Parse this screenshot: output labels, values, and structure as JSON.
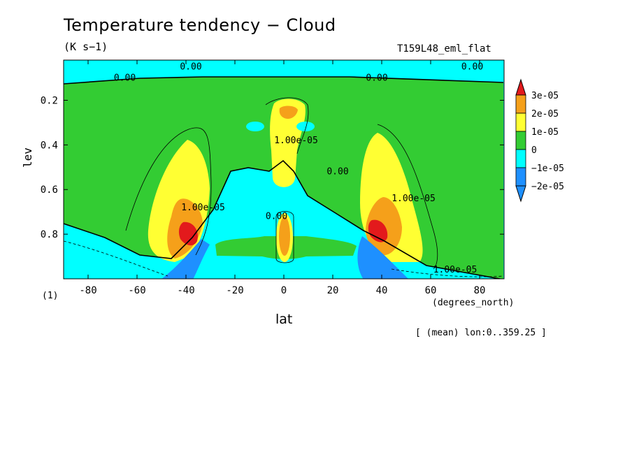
{
  "chart_data": {
    "type": "heatmap",
    "title": "Temperature tendency − Cloud",
    "units": "(K s−1)",
    "run_label": "T159L48_eml_flat",
    "xlabel": "lat",
    "x_units": "(degrees_north)",
    "ylabel": "lev",
    "corner_note": "(1)",
    "footnote": "[ (mean) lon:0..359.25 ]",
    "xlim": [
      -90,
      90
    ],
    "ylim": [
      1.0,
      0.02
    ],
    "x_ticks": [
      -80,
      -60,
      -40,
      -20,
      0,
      20,
      40,
      60,
      80
    ],
    "y_ticks": [
      0.2,
      0.4,
      0.6,
      0.8
    ],
    "y_inverted": true,
    "colorbar": {
      "levels": [
        "3e-05",
        "2e-05",
        "1e-05",
        "0",
        "−1e-05",
        "−2e-05"
      ],
      "colors": [
        "#e31a1c",
        "#f5a01a",
        "#ffff33",
        "#33cc33",
        "#00ffff",
        "#1e90ff"
      ],
      "extend": "both"
    },
    "contour_labels": [
      {
        "text": "0.00",
        "lat": -38,
        "lev": 0.05
      },
      {
        "text": "0.00",
        "lat": -65,
        "lev": 0.1
      },
      {
        "text": "0.00",
        "lat": 38,
        "lev": 0.1
      },
      {
        "text": "0.00",
        "lat": 77,
        "lev": 0.05
      },
      {
        "text": "0.00",
        "lat": 22,
        "lev": 0.52
      },
      {
        "text": "0.00",
        "lat": -3,
        "lev": 0.72
      },
      {
        "text": "1.00e-05",
        "lat": 5,
        "lev": 0.38
      },
      {
        "text": "1.00e-05",
        "lat": -33,
        "lev": 0.68
      },
      {
        "text": "1.00e-05",
        "lat": 53,
        "lev": 0.64
      },
      {
        "text": "1.00e-05",
        "lat": 70,
        "lev": 0.96
      }
    ],
    "fields": [
      {
        "region": "upper stratosphere band",
        "value_class": "−1e-05 to 0"
      },
      {
        "region": "troposphere background",
        "value_class": "0 to 1e-05"
      },
      {
        "region": "equatorial upper column",
        "value_class": "1e-05 to 2e-05"
      },
      {
        "region": "midlatitude lobes 40S/40N",
        "value_class": "up to >3e-05"
      },
      {
        "region": "subtropical lower troposphere",
        "value_class": "−1e-05 to 0"
      },
      {
        "region": "low levels near 40S/40N",
        "value_class": "< −2e-05"
      }
    ]
  }
}
